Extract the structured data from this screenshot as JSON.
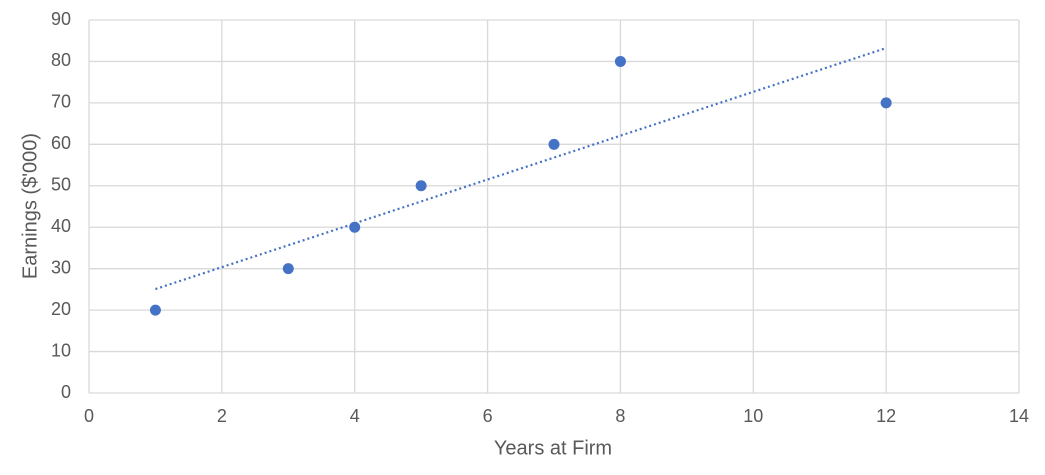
{
  "chart_data": {
    "type": "scatter",
    "x_label": "Years at Firm",
    "y_label": "Earnings ($'000)",
    "series": [
      {
        "color": "#4472c4",
        "x": [
          1,
          3,
          4,
          5,
          7,
          8,
          12
        ],
        "values": [
          20,
          30,
          40,
          50,
          60,
          80,
          70
        ]
      }
    ],
    "trendline": {
      "type": "linear",
      "color": "#4472c4",
      "style": "dotted"
    },
    "xlim": [
      0,
      14
    ],
    "xticks": [
      0,
      2,
      4,
      6,
      8,
      10,
      12,
      14
    ],
    "ylim": [
      0,
      90
    ],
    "yticks": [
      0,
      10,
      20,
      30,
      40,
      50,
      60,
      70,
      80,
      90
    ],
    "grid": true
  }
}
